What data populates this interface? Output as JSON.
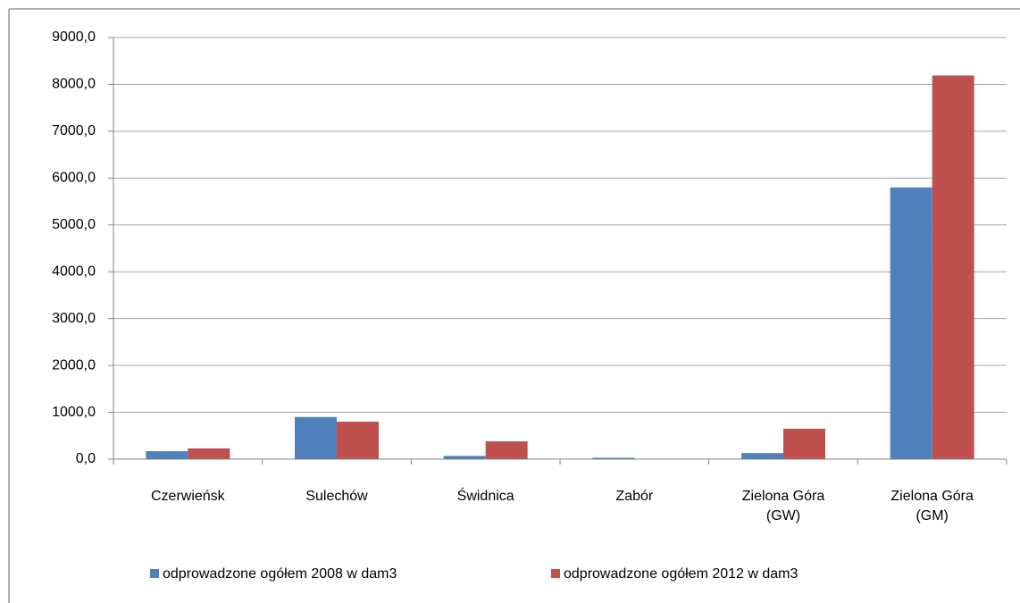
{
  "chart_data": {
    "type": "bar",
    "categories": [
      "Czerwieńsk",
      "Sulechów",
      "Świdnica",
      "Zabór",
      "Zielona Góra (GW)",
      "Zielona Góra (GM)"
    ],
    "series": [
      {
        "name": "odprowadzone ogółem 2008 w dam3",
        "color": "#4f81bd",
        "values": [
          170,
          900,
          70,
          30,
          130,
          5800
        ]
      },
      {
        "name": "odprowadzone ogółem 2012 w dam3",
        "color": "#c0504d",
        "values": [
          230,
          800,
          380,
          5,
          650,
          8190
        ]
      }
    ],
    "ylim": [
      0,
      9000
    ],
    "yticks": [
      {
        "value": 0,
        "label": "0,0"
      },
      {
        "value": 1000,
        "label": "1000,0"
      },
      {
        "value": 2000,
        "label": "2000,0"
      },
      {
        "value": 3000,
        "label": "3000,0"
      },
      {
        "value": 4000,
        "label": "4000,0"
      },
      {
        "value": 5000,
        "label": "5000,0"
      },
      {
        "value": 6000,
        "label": "6000,0"
      },
      {
        "value": 7000,
        "label": "7000,0"
      },
      {
        "value": 8000,
        "label": "8000,0"
      },
      {
        "value": 9000,
        "label": "9000,0"
      }
    ],
    "grid": true,
    "legend": "bottom"
  }
}
